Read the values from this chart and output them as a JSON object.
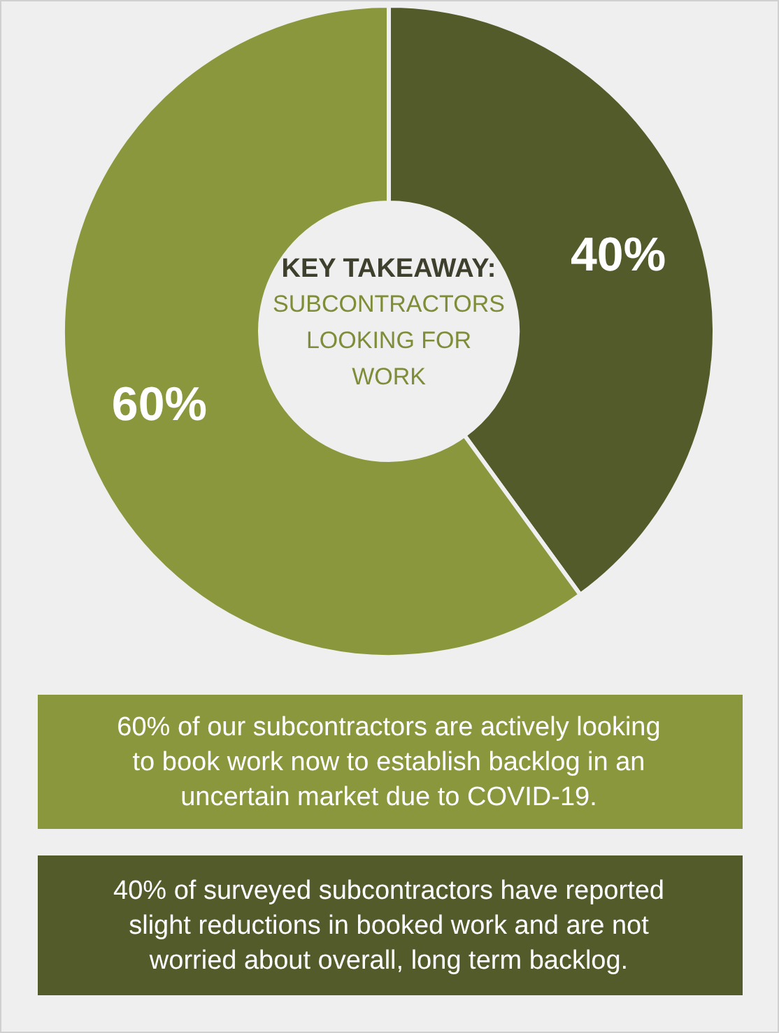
{
  "chart_data": {
    "type": "donut",
    "title": "KEY TAKEAWAY:",
    "subtitle": "SUBCONTRACTORS\nLOOKING FOR\nWORK",
    "categories": [
      null,
      null
    ],
    "values": [
      40,
      60
    ],
    "colors": [
      "#535b2b",
      "#8a973c"
    ],
    "value_labels": [
      "40%",
      "60%"
    ],
    "annotations": [
      "60% of our subcontractors are actively looking\nto book work now to establish backlog in an\nuncertain market due to COVID-19.",
      "40% of surveyed subcontractors have reported\nslight reductions in booked work and are not\nworried about overall, long term backlog."
    ]
  }
}
